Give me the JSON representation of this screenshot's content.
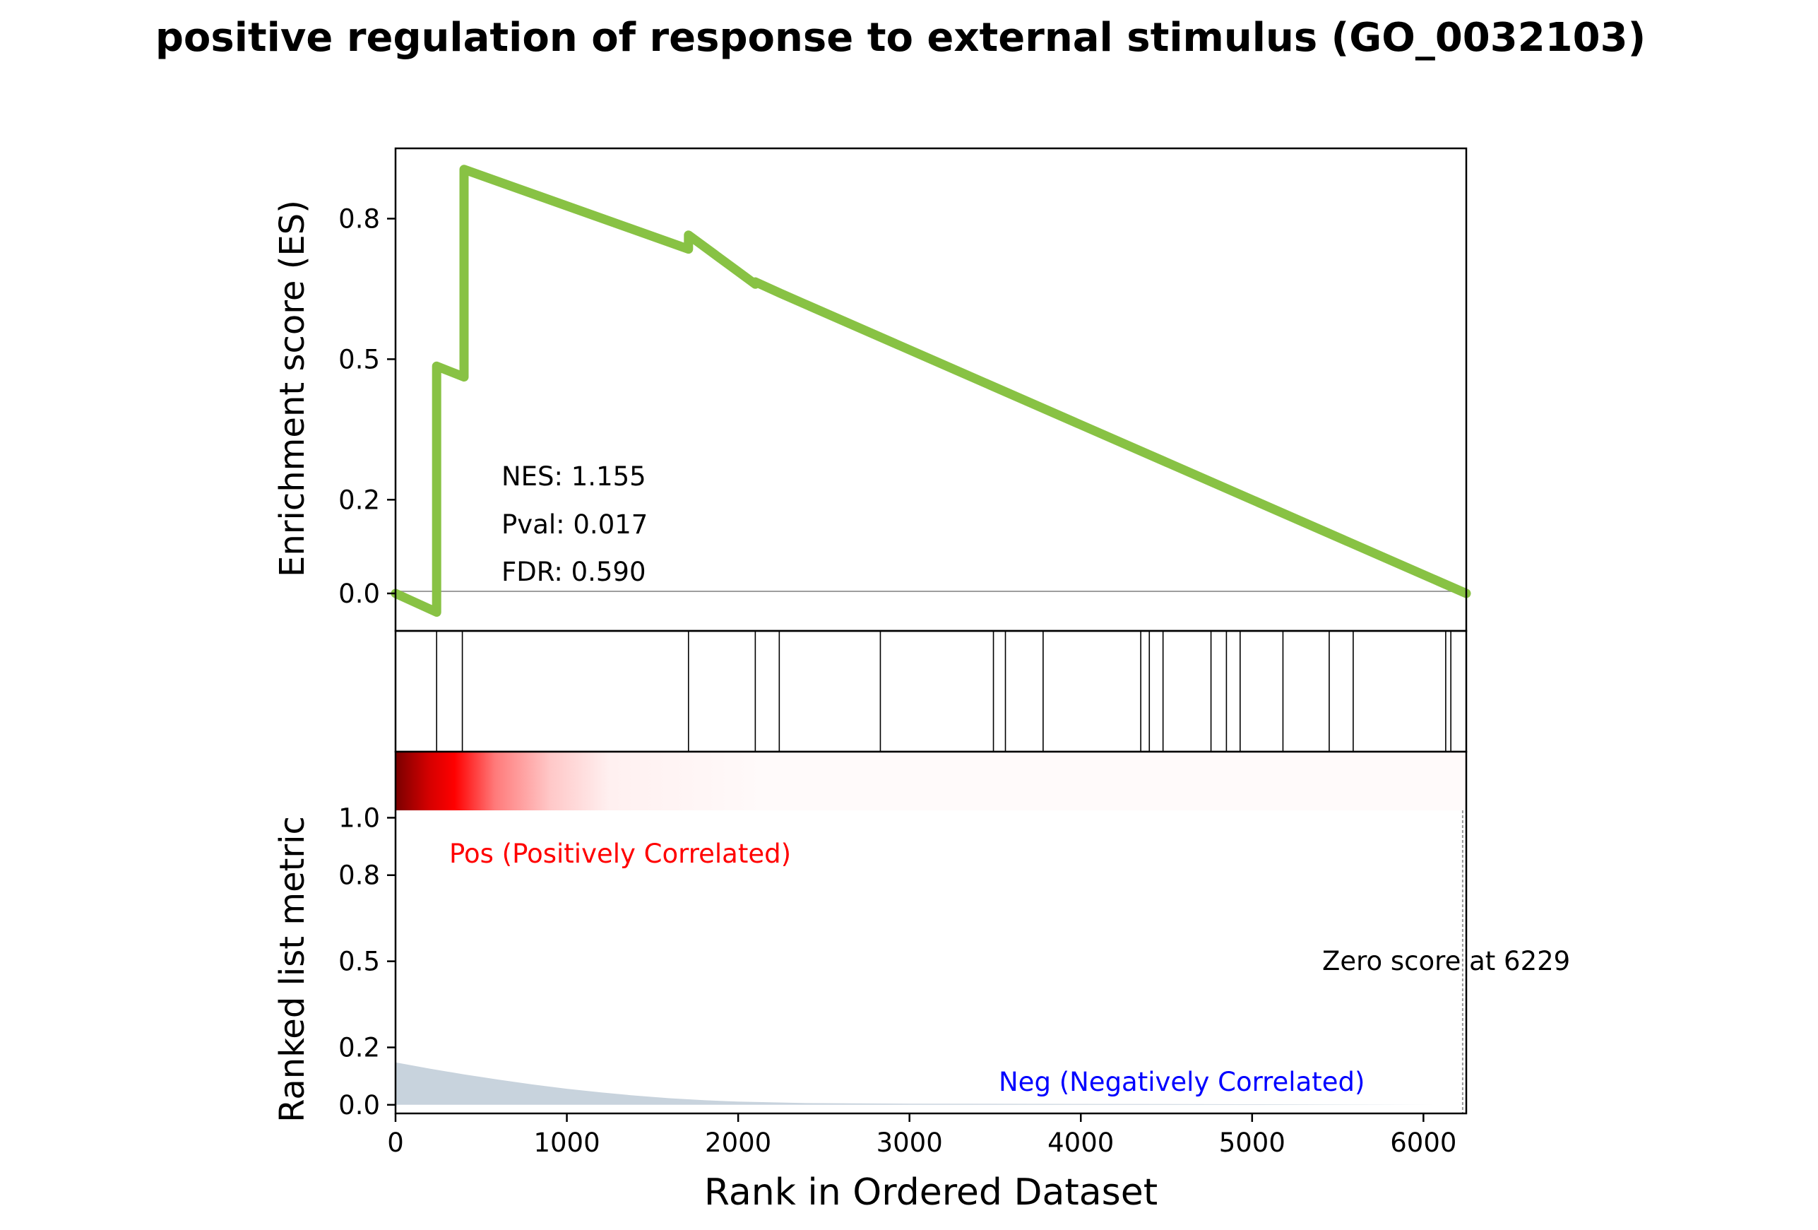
{
  "chart_data": [
    {
      "type": "line",
      "title": "positive regulation of response to external stimulus (GO_0032103)",
      "ylabel": "Enrichment score (ES)",
      "xlim": [
        0,
        6250
      ],
      "ylim": [
        -0.08,
        0.95
      ],
      "yticks": [
        0.0,
        0.2,
        0.5,
        0.8
      ],
      "ytick_labels": [
        "0.0",
        "0.2",
        "0.5",
        "0.8"
      ],
      "color": "#88c244",
      "series": [
        {
          "x": [
            0,
            240,
            240,
            400,
            400,
            1710,
            1710,
            2100,
            2100,
            2250,
            2250,
            6250
          ],
          "y": [
            0.0,
            -0.04,
            0.485,
            0.462,
            0.905,
            0.735,
            0.765,
            0.66,
            0.665,
            0.64,
            0.64,
            0.0
          ]
        }
      ],
      "annotations": [
        "NES: 1.155",
        "Pval: 0.017",
        "FDR: 0.590"
      ]
    },
    {
      "type": "hits",
      "hits": [
        240,
        390,
        1710,
        2100,
        2240,
        2830,
        3490,
        3560,
        3780,
        4350,
        4400,
        4480,
        4760,
        4850,
        4930,
        5180,
        5450,
        5590,
        6130,
        6160
      ]
    },
    {
      "type": "area",
      "ylabel": "Ranked list metric",
      "xlabel": "Rank in Ordered Dataset",
      "xlim": [
        0,
        6250
      ],
      "ylim": [
        -0.03,
        1.23
      ],
      "xticks": [
        0,
        1000,
        2000,
        3000,
        4000,
        5000,
        6000
      ],
      "xtick_labels": [
        "0",
        "1000",
        "2000",
        "3000",
        "4000",
        "5000",
        "6000"
      ],
      "yticks": [
        0.0,
        0.2,
        0.5,
        0.8,
        1.0
      ],
      "ytick_labels": [
        "0.0",
        "0.2",
        "0.5",
        "0.8",
        "1.0"
      ],
      "fill_color": "#c8d3dd",
      "series": [
        {
          "x": [
            0,
            200,
            400,
            600,
            800,
            1000,
            1200,
            1400,
            1600,
            1800,
            2000,
            2400,
            3000,
            4000,
            5000,
            6229
          ],
          "y": [
            0.148,
            0.126,
            0.106,
            0.088,
            0.071,
            0.056,
            0.043,
            0.032,
            0.023,
            0.016,
            0.011,
            0.006,
            0.004,
            0.003,
            0.002,
            0.0
          ]
        }
      ],
      "zero_score_at": 6229,
      "labels": {
        "pos": "Pos (Positively Correlated)",
        "neg": "Neg (Negatively Correlated)",
        "zero": "Zero score at 6229"
      },
      "colors": {
        "pos": "#ff0000",
        "neg": "#0000ff"
      }
    }
  ]
}
